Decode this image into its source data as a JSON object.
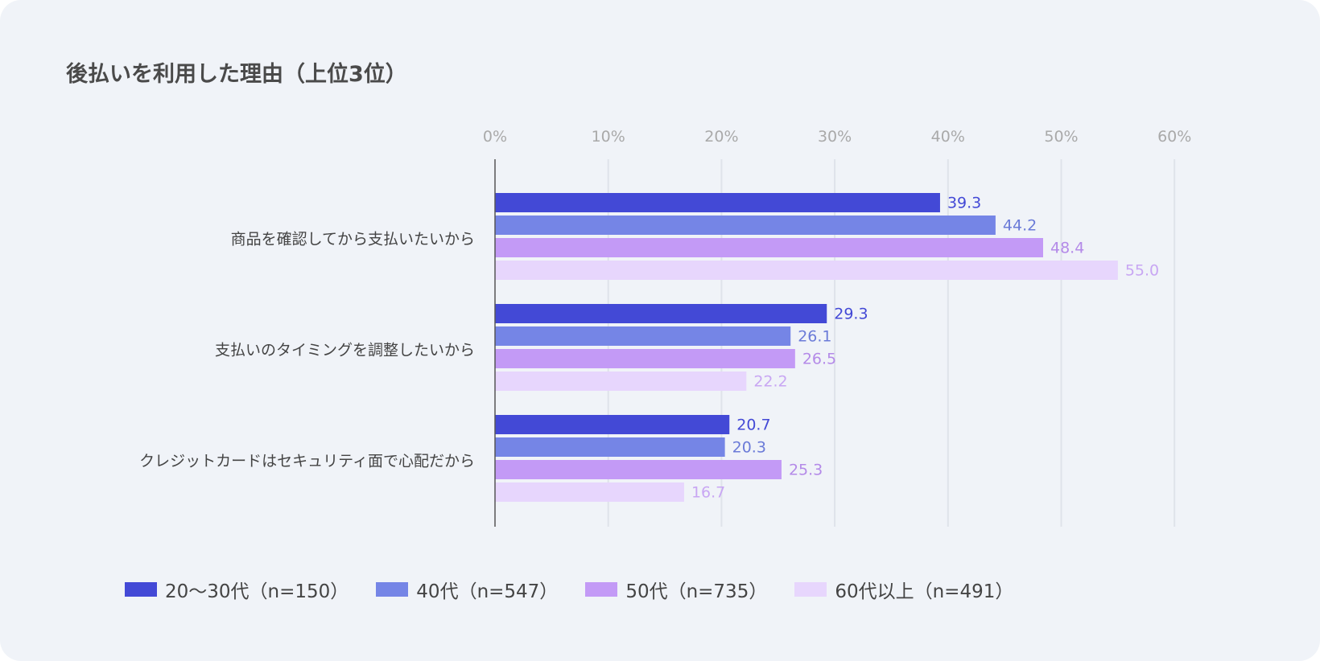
{
  "title": "後払いを利用した理由（上位3位）",
  "chart_data": {
    "type": "bar",
    "orientation": "horizontal",
    "title": "後払いを利用した理由（上位3位）",
    "xlabel": "",
    "ylabel": "",
    "xlim": [
      0,
      60
    ],
    "x_ticks": [
      "0%",
      "10%",
      "20%",
      "30%",
      "40%",
      "50%",
      "60%"
    ],
    "x_tick_values": [
      0,
      10,
      20,
      30,
      40,
      50,
      60
    ],
    "grid": true,
    "legend_position": "bottom-left",
    "categories": [
      "商品を確認してから支払いたいから",
      "支払いのタイミングを調整したいから",
      "クレジットカードはセキュリティ面で心配だから"
    ],
    "series": [
      {
        "name": "20〜30代（n=150）",
        "color": "#4349d6",
        "label_color": "#4349d6",
        "values": [
          39.3,
          29.3,
          20.7
        ],
        "labels": [
          "39.3",
          "29.3",
          "20.7"
        ]
      },
      {
        "name": "40代（n=547）",
        "color": "#7585e6",
        "label_color": "#6b7bd8",
        "values": [
          44.2,
          26.1,
          20.3
        ],
        "labels": [
          "44.2",
          "26.1",
          "20.3"
        ]
      },
      {
        "name": "50代（n=735）",
        "color": "#c39af6",
        "label_color": "#b48ae8",
        "values": [
          48.4,
          26.5,
          25.3
        ],
        "labels": [
          "48.4",
          "26.5",
          "25.3"
        ]
      },
      {
        "name": "60代以上（n=491）",
        "color": "#e7d6fd",
        "label_color": "#c8a6f3",
        "values": [
          55.0,
          22.2,
          16.7
        ],
        "labels": [
          "55.0",
          "22.2",
          "16.7"
        ]
      }
    ]
  }
}
